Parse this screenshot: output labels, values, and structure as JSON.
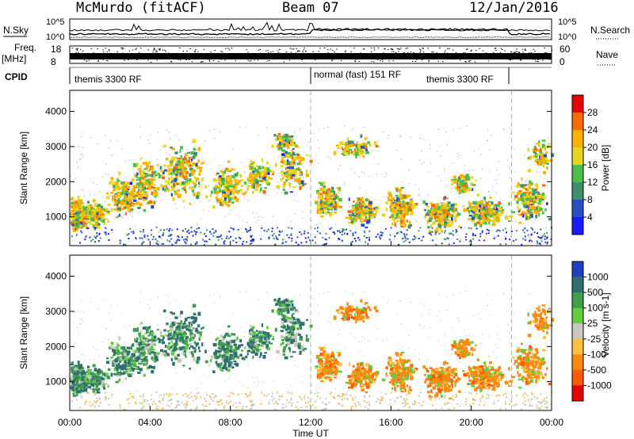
{
  "header": {
    "station": "McMurdo (fitACF)",
    "beam": "Beam 07",
    "date": "12/Jan/2016"
  },
  "strips": {
    "nsky_label": "N.Sky",
    "nsky_ticks": [
      "10^5",
      "10^0"
    ],
    "nsearch_label": "N.Search",
    "nsearch_ticks": [
      "10^5",
      "10^0"
    ],
    "freq_label": "Freq.",
    "freq_unit": "[MHz]",
    "freq_ticks": [
      "18",
      "8"
    ],
    "nave_label": "Nave",
    "nave_ticks": [
      "60",
      "0"
    ],
    "cpid_label": "CPID",
    "cpid_segments": [
      {
        "label": "themis 3300 RF",
        "start_hour": 0
      },
      {
        "label": "normal (fast) 151 RF",
        "start_hour": 12
      },
      {
        "label": "themis 3300 RF",
        "start_hour": 22
      }
    ]
  },
  "chart_data": [
    {
      "type": "heatmap",
      "name": "power",
      "ylabel": "Slant Range [km]",
      "yticks": [
        1000,
        2000,
        3000,
        4000
      ],
      "ylim": [
        180,
        4600
      ],
      "xlim": [
        0,
        24
      ],
      "colorbar": {
        "label": "Power [dB]",
        "ticks": [
          "28",
          "24",
          "20",
          "16",
          "12",
          "8",
          "4"
        ],
        "colors": [
          "#e60000",
          "#ff6a00",
          "#ffb000",
          "#e8d51e",
          "#4bbf4b",
          "#3f8f6f",
          "#2a4fbf",
          "#1a1aff"
        ]
      }
    },
    {
      "type": "heatmap",
      "name": "velocity",
      "ylabel": "Slant Range [km]",
      "yticks": [
        1000,
        2000,
        3000,
        4000
      ],
      "ylim": [
        180,
        4600
      ],
      "xlim": [
        0,
        24
      ],
      "xlabel": "Time UT",
      "xticks": [
        "00:00",
        "04:00",
        "08:00",
        "12:00",
        "16:00",
        "20:00",
        "00:00"
      ],
      "colorbar": {
        "label": "Velocity [m s-1]",
        "ticks": [
          "1000",
          "500",
          "100",
          "25",
          "-25",
          "-100",
          "-500",
          "-1000"
        ],
        "colors": [
          "#1f3fbf",
          "#2f6f6f",
          "#3f9f4f",
          "#5fcf3f",
          "#c8c8c0",
          "#ffbf40",
          "#ff8a10",
          "#ff5a00",
          "#e60000"
        ]
      }
    }
  ]
}
